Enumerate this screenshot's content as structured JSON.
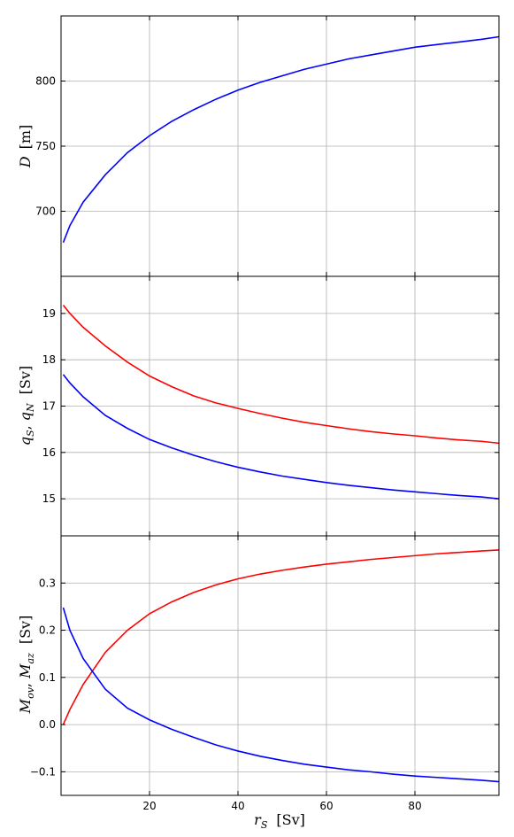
{
  "chart_data": [
    {
      "type": "line",
      "ylabel_symbol": "D",
      "ylabel_unit": "[m]",
      "xlim": [
        0,
        99
      ],
      "ylim": [
        650,
        850
      ],
      "yticks": [
        700,
        750,
        800
      ],
      "xticks": [
        20,
        40,
        60,
        80
      ],
      "grid": true,
      "series": [
        {
          "color": "#0000ff",
          "x": [
            0.5,
            2,
            5,
            10,
            15,
            20,
            25,
            30,
            35,
            40,
            45,
            50,
            55,
            60,
            65,
            70,
            75,
            80,
            85,
            90,
            95,
            99
          ],
          "y": [
            676,
            689,
            707,
            728,
            745,
            758,
            769,
            778,
            786,
            793,
            799,
            804,
            809,
            813,
            817,
            820,
            823,
            826,
            828,
            830,
            832,
            834
          ]
        }
      ]
    },
    {
      "type": "line",
      "ylabel_symbol": "q",
      "ylabel_sub1": "S",
      "ylabel_sep": ", ",
      "ylabel_sub2": "N",
      "ylabel_unit": "[Sv]",
      "xlim": [
        0,
        99
      ],
      "ylim": [
        14.2,
        19.8
      ],
      "yticks": [
        15,
        16,
        17,
        18,
        19
      ],
      "xticks": [
        20,
        40,
        60,
        80
      ],
      "grid": true,
      "series": [
        {
          "color": "#ff0000",
          "x": [
            0.5,
            2,
            5,
            10,
            15,
            20,
            25,
            30,
            35,
            40,
            45,
            50,
            55,
            60,
            65,
            70,
            75,
            80,
            85,
            90,
            95,
            99
          ],
          "y": [
            19.18,
            19.0,
            18.7,
            18.3,
            17.95,
            17.65,
            17.42,
            17.22,
            17.07,
            16.95,
            16.84,
            16.74,
            16.65,
            16.58,
            16.51,
            16.45,
            16.4,
            16.36,
            16.31,
            16.27,
            16.24,
            16.2
          ]
        },
        {
          "color": "#0000ff",
          "x": [
            0.5,
            2,
            5,
            10,
            15,
            20,
            25,
            30,
            35,
            40,
            45,
            50,
            55,
            60,
            65,
            70,
            75,
            80,
            85,
            90,
            95,
            99
          ],
          "y": [
            17.68,
            17.5,
            17.2,
            16.8,
            16.52,
            16.28,
            16.1,
            15.94,
            15.8,
            15.68,
            15.58,
            15.49,
            15.42,
            15.35,
            15.29,
            15.24,
            15.19,
            15.15,
            15.11,
            15.07,
            15.04,
            15.0
          ]
        }
      ]
    },
    {
      "type": "line",
      "ylabel_symbol1": "M",
      "ylabel_sub1": "ov",
      "ylabel_sep": ", ",
      "ylabel_symbol2": "M",
      "ylabel_sub2": "az",
      "ylabel_unit": "[Sv]",
      "xlabel_symbol": "r",
      "xlabel_sub": "S",
      "xlabel_unit": "[Sv]",
      "xlim": [
        0,
        99
      ],
      "ylim": [
        -0.15,
        0.4
      ],
      "yticks": [
        -0.1,
        0.0,
        0.1,
        0.2,
        0.3
      ],
      "ytick_labels": [
        "−0.1",
        "0.0",
        "0.1",
        "0.2",
        "0.3"
      ],
      "xticks": [
        20,
        40,
        60,
        80
      ],
      "grid": true,
      "series": [
        {
          "color": "#ff0000",
          "x": [
            0.5,
            2,
            5,
            10,
            15,
            20,
            25,
            30,
            35,
            40,
            45,
            50,
            55,
            60,
            65,
            70,
            75,
            80,
            85,
            90,
            95,
            99
          ],
          "y": [
            0.0,
            0.032,
            0.085,
            0.153,
            0.2,
            0.235,
            0.26,
            0.28,
            0.296,
            0.309,
            0.319,
            0.327,
            0.334,
            0.34,
            0.345,
            0.35,
            0.354,
            0.358,
            0.362,
            0.365,
            0.368,
            0.37
          ]
        },
        {
          "color": "#0000ff",
          "x": [
            0.5,
            2,
            5,
            10,
            15,
            20,
            25,
            30,
            35,
            40,
            45,
            50,
            55,
            60,
            65,
            70,
            75,
            80,
            85,
            90,
            95,
            99
          ],
          "y": [
            0.248,
            0.2,
            0.14,
            0.075,
            0.035,
            0.01,
            -0.01,
            -0.027,
            -0.043,
            -0.056,
            -0.067,
            -0.076,
            -0.084,
            -0.09,
            -0.096,
            -0.1,
            -0.105,
            -0.109,
            -0.112,
            -0.115,
            -0.118,
            -0.121
          ]
        }
      ]
    }
  ]
}
